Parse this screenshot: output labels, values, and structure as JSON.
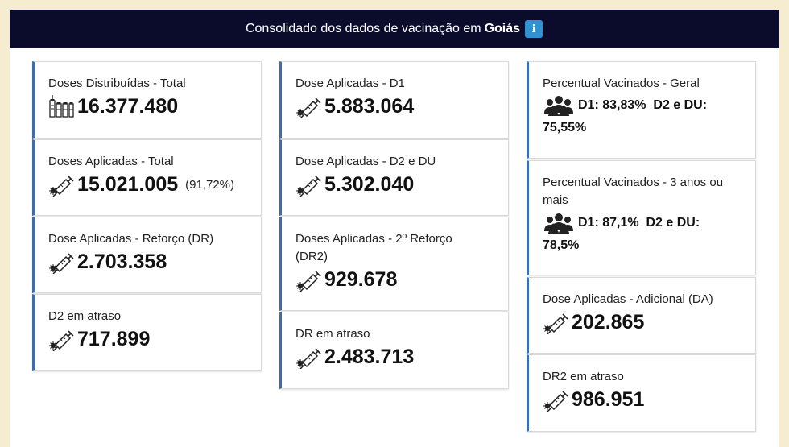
{
  "header": {
    "title": "Consolidado dos dados de vacinação em",
    "state": "Goiás",
    "info_label": "i"
  },
  "cards": {
    "doses_distribuidas": {
      "label": "Doses Distribuídas - Total",
      "value": "16.377.480"
    },
    "doses_aplicadas_total": {
      "label": "Doses Aplicadas - Total",
      "value": "15.021.005",
      "percent": "(91,72%)"
    },
    "reforco_dr": {
      "label": "Dose Aplicadas - Reforço (DR)",
      "value": "2.703.358"
    },
    "d2_atraso": {
      "label": "D2 em atraso",
      "value": "717.899"
    },
    "d1": {
      "label": "Dose Aplicadas - D1",
      "value": "5.883.064"
    },
    "d2_du": {
      "label": "Dose Aplicadas - D2 e DU",
      "value": "5.302.040"
    },
    "reforco_dr2": {
      "label": "Doses Aplicadas - 2º Reforço (DR2)",
      "value": "929.678"
    },
    "dr_atraso": {
      "label": "DR em atraso",
      "value": "2.483.713"
    },
    "pct_geral": {
      "label": "Percentual Vacinados - Geral",
      "line1": "D1: 83,83%  D2 e DU:",
      "line2": "75,55%"
    },
    "pct_3anos": {
      "label": "Percentual Vacinados - 3 anos ou mais",
      "line1": "D1: 87,1%  D2 e DU:",
      "line2": "78,5%"
    },
    "adicional_da": {
      "label": "Dose Aplicadas - Adicional (DA)",
      "value": "202.865"
    },
    "dr2_atraso": {
      "label": "DR2 em atraso",
      "value": "986.951"
    }
  },
  "icons": {
    "syringe": "syringe-icon",
    "vials": "vials-icon",
    "people": "people-group-icon"
  },
  "colors": {
    "header_bg": "#0b0b2c",
    "card_accent": "#3d6fa6",
    "info_badge": "#2f93d3"
  }
}
